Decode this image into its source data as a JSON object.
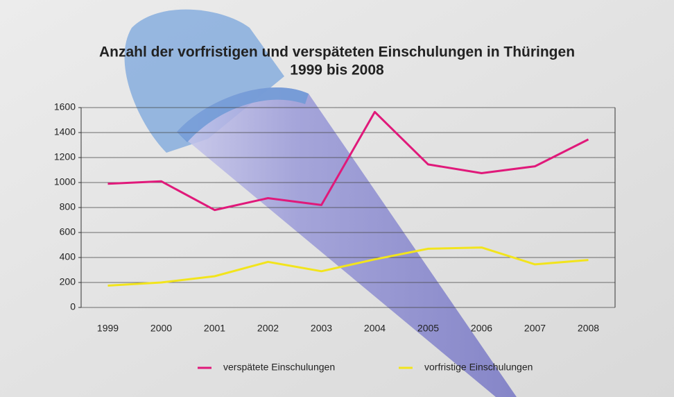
{
  "chart_data": {
    "type": "line",
    "title": "Anzahl der vorfristigen und verspäteten Einschulungen in Thüringen",
    "subtitle": "1999 bis 2008",
    "categories": [
      "1999",
      "2000",
      "2001",
      "2002",
      "2003",
      "2004",
      "2005",
      "2006",
      "2007",
      "2008"
    ],
    "series": [
      {
        "name": "verspätete Einschulungen",
        "color": "#e0197a",
        "values": [
          990,
          1010,
          780,
          875,
          820,
          1565,
          1145,
          1075,
          1130,
          1345
        ]
      },
      {
        "name": "vorfristige Einschulungen",
        "color": "#f2e41c",
        "values": [
          175,
          200,
          250,
          365,
          290,
          385,
          470,
          480,
          345,
          380
        ]
      }
    ],
    "ylim": [
      0,
      1600
    ],
    "yticks": [
      0,
      200,
      400,
      600,
      800,
      1000,
      1200,
      1400,
      1600
    ],
    "grid": true,
    "legend": "bottom"
  }
}
